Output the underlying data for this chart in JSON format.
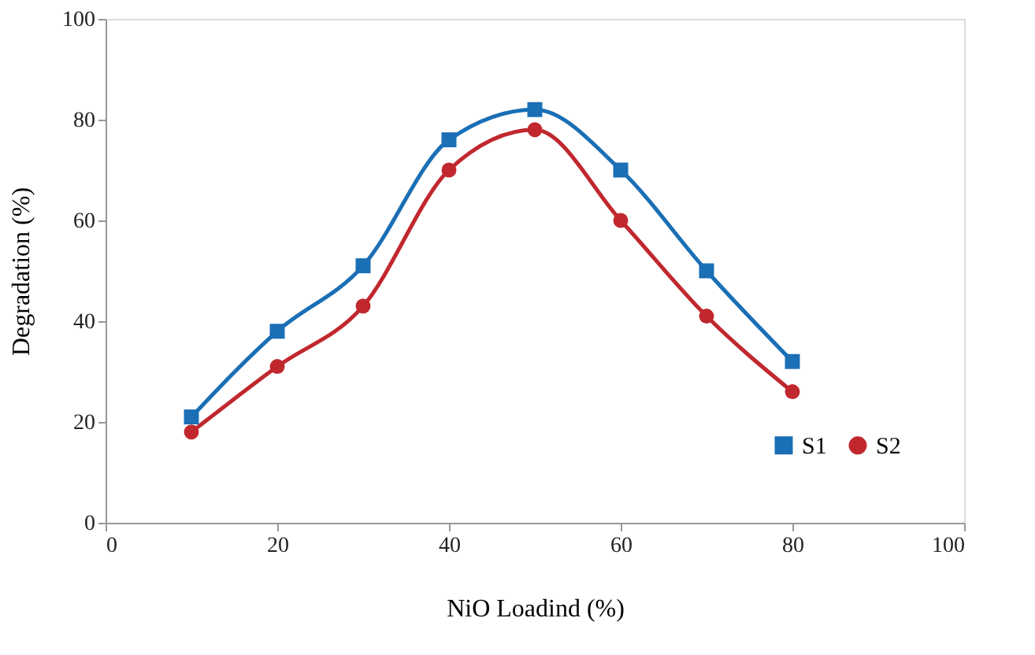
{
  "chart_data": {
    "type": "line",
    "xlabel": "NiO Loadind (%)",
    "ylabel": "Degradation (%)",
    "x": [
      10,
      20,
      30,
      40,
      50,
      60,
      70,
      80
    ],
    "xlim": [
      0,
      100
    ],
    "xticks": [
      0,
      20,
      40,
      60,
      80,
      100
    ],
    "ylim": [
      0,
      100
    ],
    "yticks": [
      0,
      20,
      40,
      60,
      80,
      100
    ],
    "grid": false,
    "legend": "bottom right",
    "line_style": "solid",
    "series": [
      {
        "name": "S1",
        "color": "#1a6fb5",
        "marker": "square",
        "values": [
          21,
          38,
          51,
          76,
          82,
          70,
          50,
          32
        ]
      },
      {
        "name": "S2",
        "color": "#c0282e",
        "marker": "circle",
        "values": [
          18,
          31,
          43,
          70,
          78,
          60,
          41,
          26
        ]
      }
    ]
  }
}
